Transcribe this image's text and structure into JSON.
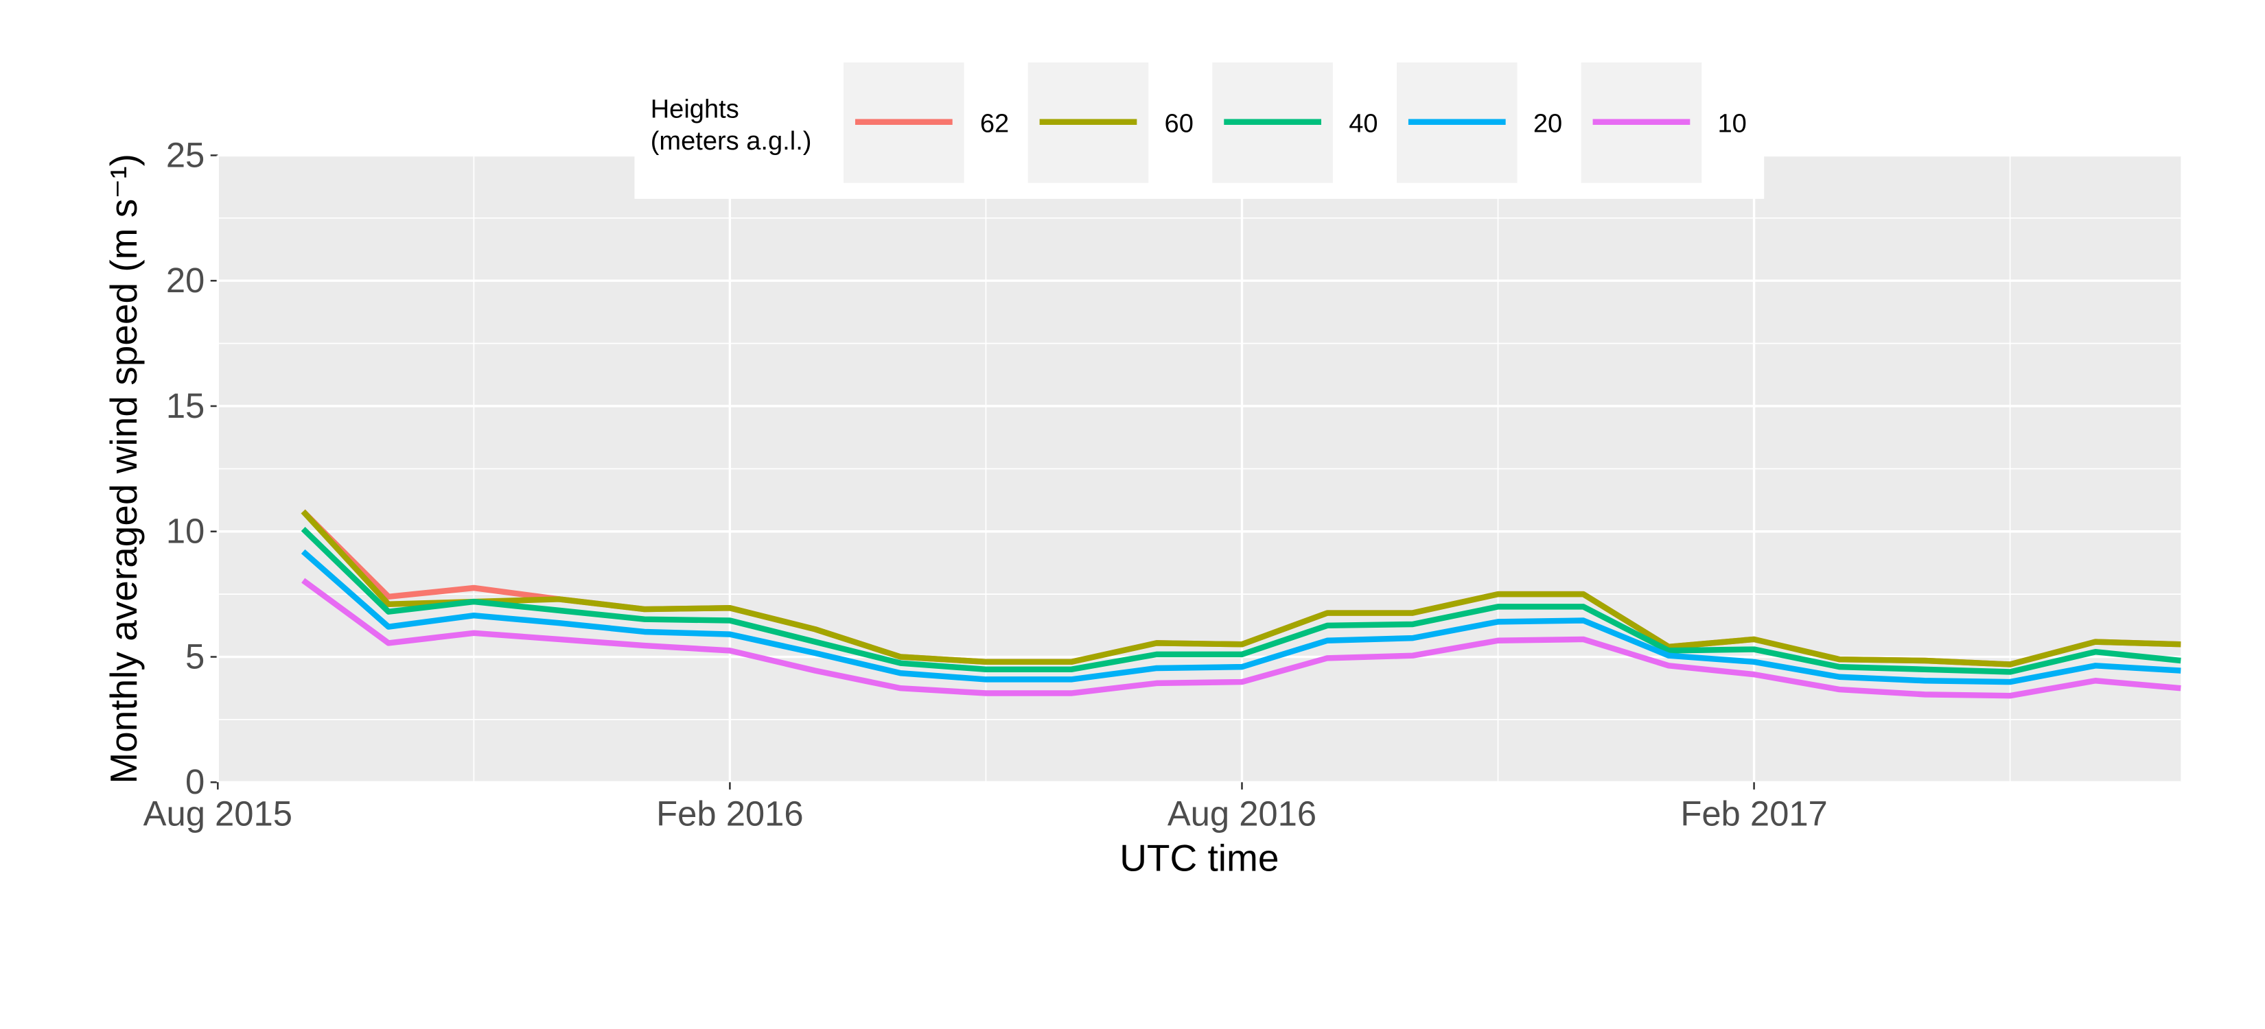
{
  "chart_data": {
    "type": "line",
    "x_label": "UTC time",
    "y_label": "Monthly averaged wind speed (m s⁻¹)",
    "legend_title": [
      "Heights",
      "(meters a.g.l.)"
    ],
    "legend_position": "top",
    "grid": true,
    "x": [
      "2015-09",
      "2015-10",
      "2015-11",
      "2015-12",
      "2016-01",
      "2016-02",
      "2016-03",
      "2016-04",
      "2016-05",
      "2016-06",
      "2016-07",
      "2016-08",
      "2016-09",
      "2016-10",
      "2016-11",
      "2016-12",
      "2017-01",
      "2017-02",
      "2017-03",
      "2017-04",
      "2017-05",
      "2017-06",
      "2017-07"
    ],
    "xlim": [
      "2015-08",
      "2017-07"
    ],
    "xticks": [
      {
        "value": "2015-08",
        "label": "Aug 2015"
      },
      {
        "value": "2016-02",
        "label": "Feb 2016"
      },
      {
        "value": "2016-08",
        "label": "Aug 2016"
      },
      {
        "value": "2017-02",
        "label": "Feb 2017"
      }
    ],
    "ylim": [
      0,
      25
    ],
    "yticks": [
      0,
      5,
      10,
      15,
      20,
      25
    ],
    "series": [
      {
        "name": "62",
        "color": "#f8766d",
        "values": [
          10.8,
          7.4,
          7.75,
          7.3,
          6.9,
          6.95,
          6.1,
          5.0,
          4.8,
          4.8,
          5.55,
          5.5,
          6.75,
          6.75,
          7.5,
          7.5,
          5.4,
          5.7,
          4.9,
          4.85,
          4.7,
          5.6,
          5.5
        ]
      },
      {
        "name": "60",
        "color": "#a3a500",
        "values": [
          10.8,
          7.1,
          7.2,
          7.3,
          6.9,
          6.95,
          6.1,
          5.0,
          4.8,
          4.8,
          5.55,
          5.5,
          6.75,
          6.75,
          7.5,
          7.5,
          5.4,
          5.7,
          4.9,
          4.85,
          4.7,
          5.6,
          5.5
        ]
      },
      {
        "name": "40",
        "color": "#00bf7d",
        "values": [
          10.1,
          6.8,
          7.2,
          6.85,
          6.5,
          6.45,
          5.6,
          4.75,
          4.5,
          4.5,
          5.1,
          5.1,
          6.25,
          6.3,
          7.0,
          7.0,
          5.25,
          5.3,
          4.6,
          4.5,
          4.4,
          5.2,
          4.85
        ]
      },
      {
        "name": "20",
        "color": "#00b0f6",
        "values": [
          9.2,
          6.2,
          6.65,
          6.35,
          6.0,
          5.9,
          5.15,
          4.35,
          4.1,
          4.1,
          4.55,
          4.6,
          5.65,
          5.75,
          6.4,
          6.45,
          5.05,
          4.8,
          4.2,
          4.05,
          4.0,
          4.65,
          4.45
        ]
      },
      {
        "name": "10",
        "color": "#e76bf3",
        "values": [
          8.05,
          5.55,
          5.95,
          5.7,
          5.45,
          5.25,
          4.45,
          3.75,
          3.55,
          3.55,
          3.95,
          4.0,
          4.95,
          5.05,
          5.65,
          5.7,
          4.65,
          4.3,
          3.7,
          3.5,
          3.45,
          4.05,
          3.75
        ]
      }
    ]
  }
}
